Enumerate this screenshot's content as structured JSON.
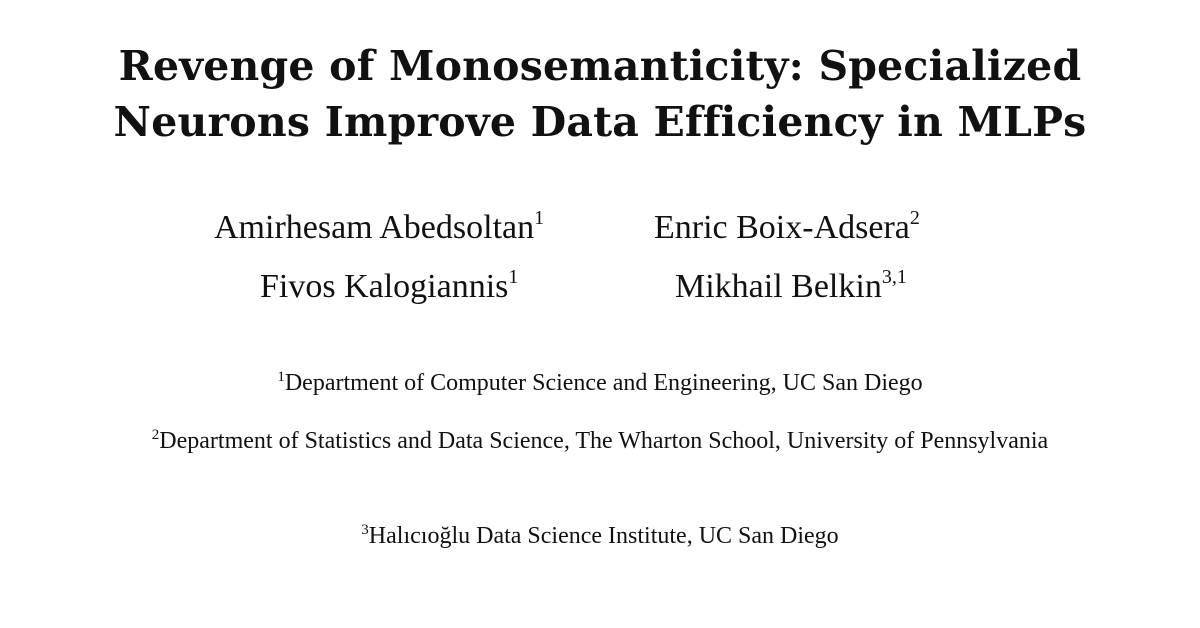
{
  "title": {
    "line1": "Revenge of Monosemanticity: Specialized",
    "line2": "Neurons Improve Data Efficiency in MLPs"
  },
  "authors": [
    {
      "name": "Amirhesam Abedsoltan",
      "sup": "1"
    },
    {
      "name": "Enric Boix-Adsera",
      "sup": "2"
    },
    {
      "name": "Fivos Kalogiannis",
      "sup": "1"
    },
    {
      "name": "Mikhail Belkin",
      "sup": "3,1"
    }
  ],
  "affiliations": [
    {
      "sup": "1",
      "text": "Department of Computer Science and Engineering, UC San Diego"
    },
    {
      "sup": "2",
      "text": "Department of Statistics and Data Science, The Wharton School, University of Pennsylvania"
    },
    {
      "sup": "3",
      "text": "Halıcıoğlu Data Science Institute, UC San Diego"
    }
  ]
}
